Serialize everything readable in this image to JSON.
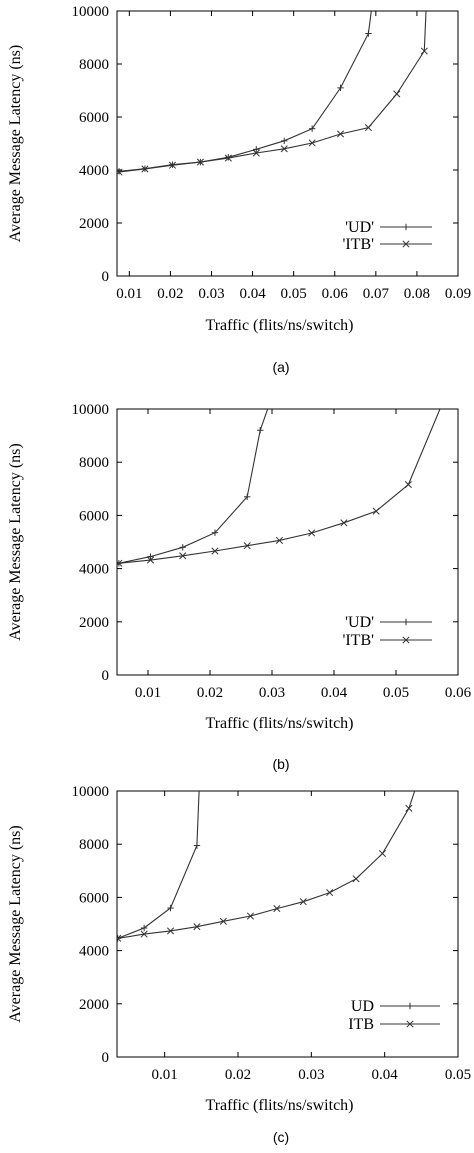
{
  "chart_data": [
    {
      "type": "line",
      "panel_label": "(a)",
      "xlabel": "Traffic (flits/ns/switch)",
      "ylabel": "Average Message Latency (ns)",
      "xlim": [
        0.007,
        0.09
      ],
      "ylim": [
        0,
        10000
      ],
      "xticks": [
        "0.01",
        "0.02",
        "0.03",
        "0.04",
        "0.05",
        "0.06",
        "0.07",
        "0.08",
        "0.09"
      ],
      "yticks": [
        "0",
        "2000",
        "4000",
        "6000",
        "8000",
        "10000"
      ],
      "grid": false,
      "legend_position": "right",
      "series": [
        {
          "name": "'UD'",
          "marker": "plus",
          "x": [
            0.0075,
            0.0138,
            0.0205,
            0.0273,
            0.0341,
            0.0409,
            0.0477,
            0.0545,
            0.0614,
            0.0682,
            0.0689
          ],
          "y": [
            3950,
            4050,
            4200,
            4300,
            4480,
            4780,
            5100,
            5560,
            7100,
            9150,
            10000
          ]
        },
        {
          "name": "'ITB'",
          "marker": "cross",
          "x": [
            0.0075,
            0.0138,
            0.0205,
            0.0273,
            0.0341,
            0.0409,
            0.0477,
            0.0545,
            0.0614,
            0.0682,
            0.0751,
            0.0818,
            0.0822
          ],
          "y": [
            3920,
            4040,
            4180,
            4300,
            4450,
            4640,
            4800,
            5020,
            5360,
            5600,
            6870,
            8490,
            10000
          ]
        }
      ]
    },
    {
      "type": "line",
      "panel_label": "(b)",
      "xlabel": "Traffic (flits/ns/switch)",
      "ylabel": "Average Message Latency (ns)",
      "xlim": [
        0.005,
        0.06
      ],
      "ylim": [
        0,
        10000
      ],
      "xticks": [
        "0.01",
        "0.02",
        "0.03",
        "0.04",
        "0.05",
        "0.06"
      ],
      "yticks": [
        "0",
        "2000",
        "4000",
        "6000",
        "8000",
        "10000"
      ],
      "grid": false,
      "legend_position": "bottom-right",
      "series": [
        {
          "name": "'UD'",
          "marker": "plus",
          "x": [
            0.0053,
            0.0104,
            0.0156,
            0.0208,
            0.026,
            0.0281,
            0.0293
          ],
          "y": [
            4200,
            4450,
            4800,
            5350,
            6700,
            9200,
            10000
          ]
        },
        {
          "name": "'ITB'",
          "marker": "cross",
          "x": [
            0.0053,
            0.0104,
            0.0156,
            0.0208,
            0.026,
            0.0312,
            0.0364,
            0.0416,
            0.0468,
            0.052,
            0.0571
          ],
          "y": [
            4200,
            4320,
            4480,
            4660,
            4860,
            5060,
            5340,
            5720,
            6160,
            7160,
            10000
          ]
        }
      ]
    },
    {
      "type": "line",
      "panel_label": "(c)",
      "xlabel": "Traffic (flits/ns/switch)",
      "ylabel": "Average Message Latency (ns)",
      "xlim": [
        0.0035,
        0.05
      ],
      "ylim": [
        0,
        10000
      ],
      "xticks": [
        "0.01",
        "0.02",
        "0.03",
        "0.04",
        "0.05"
      ],
      "yticks": [
        "0",
        "2000",
        "4000",
        "6000",
        "8000",
        "10000"
      ],
      "grid": false,
      "legend_position": "bottom-right",
      "series": [
        {
          "name": "UD",
          "marker": "plus",
          "x": [
            0.0036,
            0.0072,
            0.0108,
            0.0144,
            0.0147
          ],
          "y": [
            4460,
            4850,
            5600,
            7950,
            10000
          ]
        },
        {
          "name": "ITB",
          "marker": "cross",
          "x": [
            0.0036,
            0.0072,
            0.0108,
            0.0144,
            0.018,
            0.0217,
            0.0253,
            0.0289,
            0.0325,
            0.0361,
            0.0397,
            0.0433,
            0.0441
          ],
          "y": [
            4460,
            4620,
            4740,
            4900,
            5100,
            5300,
            5580,
            5840,
            6180,
            6700,
            7650,
            9350,
            10000
          ]
        }
      ]
    }
  ]
}
